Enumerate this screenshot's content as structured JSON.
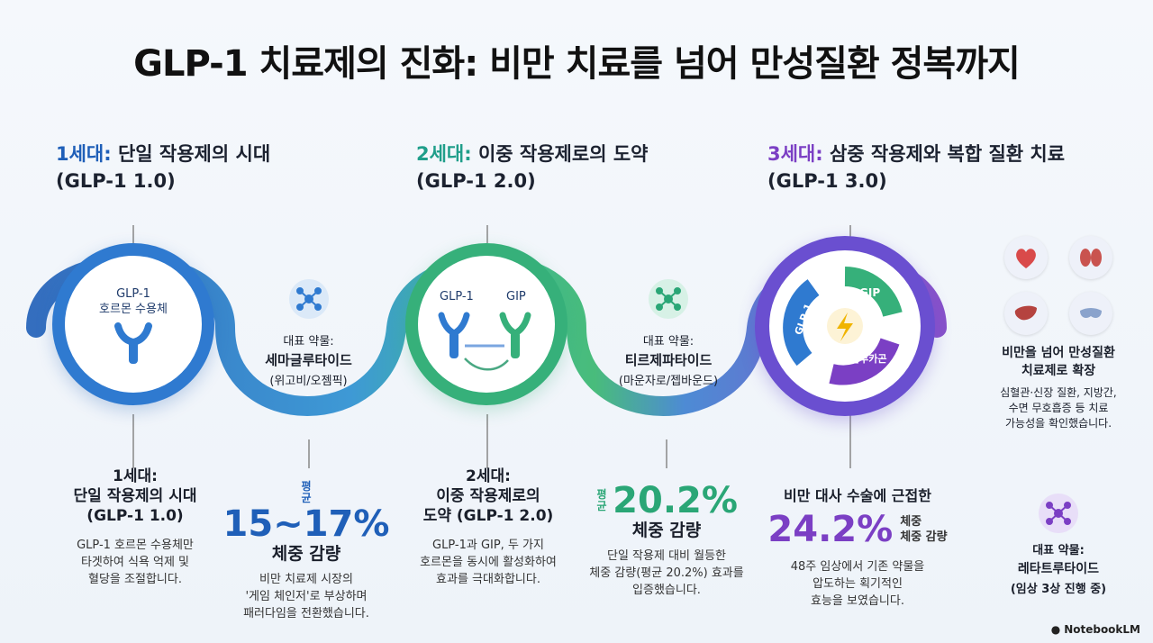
{
  "title": "GLP-1 치료제의 진화: 비만 치료를 넘어 만성질환 정복까지",
  "gen1": {
    "head_accent": "1세대:",
    "head_text": " 단일 작용제의 시대",
    "head_sub": "(GLP-1 1.0)",
    "circle_label": "GLP-1\n호르몬 수용체",
    "drug_label": "대표 약물:",
    "drug_name": "세마글루타이드",
    "drug_brand": "(위고비/오젬픽)",
    "bottom_title": "1세대:\n단일 작용제의 시대\n(GLP-1 1.0)",
    "bottom_desc": "GLP-1 호르몬 수용체만\n타겟하여 식욕 억제 및\n혈당을 조절합니다.",
    "stat_prefix": "평균",
    "stat_value": "15~17%",
    "stat_label": "체중 감량",
    "stat_desc": "비만 치료제 시장의\n'게임 체인저'로 부상하며\n패러다임을 전환했습니다."
  },
  "gen2": {
    "head_accent": "2세대:",
    "head_text": " 이중 작용제로의 도약",
    "head_sub": "(GLP-1 2.0)",
    "receptor_a": "GLP-1",
    "receptor_b": "GIP",
    "drug_label": "대표 약물:",
    "drug_name": "티르제파타이드",
    "drug_brand": "(마운자로/젭바운드)",
    "bottom_title": "2세대:\n이중 작용제로의\n도약 (GLP-1 2.0)",
    "bottom_desc": "GLP-1과 GIP, 두 가지\n호르몬을 동시에 활성화하여\n효과를 극대화합니다.",
    "stat_prefix": "평균",
    "stat_value": "20.2%",
    "stat_label": "체중 감량",
    "stat_desc": "단일 작용제 대비 월등한\n체중 감량(평균 20.2%) 효과를\n입증했습니다."
  },
  "gen3": {
    "head_accent": "3세대:",
    "head_text": " 삼중 작용제와 복합 질환 치료",
    "head_sub": "(GLP-1 3.0)",
    "cycle_a": "GLP-1",
    "cycle_b": "GIP",
    "cycle_c": "글루카곤",
    "stat_intro": "비만 대사 수술에 근접한",
    "stat_value": "24.2%",
    "stat_label": "체중\n체중 감량",
    "stat_desc": "48주 임상에서 기존 약물을\n압도하는 획기적인\n효능을 보였습니다.",
    "expand_title": "비만을 넘어 만성질환\n치료제로 확장",
    "expand_desc": "심혈관·신장 질환, 지방간,\n수면 무호흡증 등 치료\n가능성을 확인했습니다.",
    "drug_label": "대표 약물:",
    "drug_name": "레타트루타이드",
    "drug_brand": "(임상 3상 진행 중)"
  },
  "brand": "NotebookLM",
  "colors": {
    "gen1": "#1f5fb8",
    "gen2": "#1f9e8a",
    "gen3": "#7b3fc4"
  },
  "icons": [
    "molecule-icon",
    "receptor-icon",
    "heart-icon",
    "kidney-icon",
    "liver-icon",
    "sleep-mask-icon",
    "lightning-icon"
  ]
}
